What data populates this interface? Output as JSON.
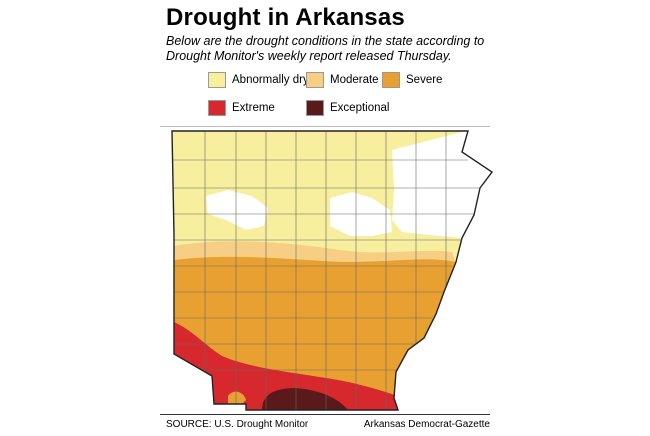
{
  "title": "Drought in Arkansas",
  "subtitle": "Below are the drought conditions in the state according to Drought Monitor's weekly report released Thursday.",
  "legend": [
    {
      "label": "Abnormally dry",
      "color": "#f7ee9e"
    },
    {
      "label": "Moderate",
      "color": "#f6cf84"
    },
    {
      "label": "Severe",
      "color": "#e8a130"
    },
    {
      "label": "Extreme",
      "color": "#d7282e"
    },
    {
      "label": "Exceptional",
      "color": "#5a1a1b"
    }
  ],
  "source": "SOURCE: U.S. Drought Monitor",
  "credit": "Arkansas Democrat-Gazette"
}
